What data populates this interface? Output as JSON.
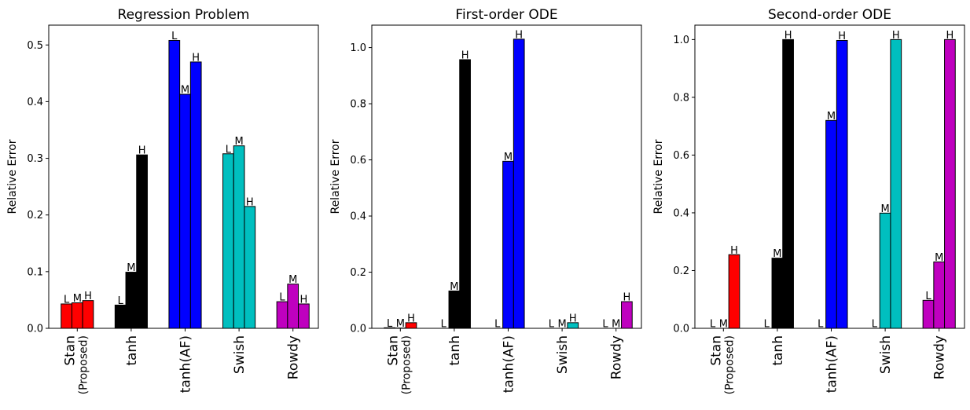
{
  "chart_data": [
    {
      "type": "bar",
      "title": "Regression Problem",
      "ylabel": "Relative Error",
      "ylim": [
        0,
        0.535
      ],
      "yticks": [
        0.0,
        0.1,
        0.2,
        0.3,
        0.4,
        0.5
      ],
      "categories": [
        {
          "label": "Stan",
          "sub": "(Proposed)",
          "color": "#ff0000"
        },
        {
          "label": "tanh",
          "sub": "",
          "color": "#000000"
        },
        {
          "label": "tanh(AF)",
          "sub": "",
          "color": "#0000ff"
        },
        {
          "label": "Swish",
          "sub": "",
          "color": "#00bfbf"
        },
        {
          "label": "Rowdy",
          "sub": "",
          "color": "#bf00bf"
        }
      ],
      "bar_labels": [
        "L",
        "M",
        "H"
      ],
      "values": [
        [
          0.043,
          0.045,
          0.049
        ],
        [
          0.041,
          0.099,
          0.306
        ],
        [
          0.508,
          0.413,
          0.47
        ],
        [
          0.308,
          0.322,
          0.215
        ],
        [
          0.047,
          0.078,
          0.043
        ]
      ]
    },
    {
      "type": "bar",
      "title": "First-order ODE",
      "ylabel": "Relative Error",
      "ylim": [
        0,
        1.08
      ],
      "yticks": [
        0.0,
        0.2,
        0.4,
        0.6,
        0.8,
        1.0
      ],
      "categories": [
        {
          "label": "Stan",
          "sub": "(Proposed)",
          "color": "#ff0000"
        },
        {
          "label": "tanh",
          "sub": "",
          "color": "#000000"
        },
        {
          "label": "tanh(AF)",
          "sub": "",
          "color": "#0000ff"
        },
        {
          "label": "Swish",
          "sub": "",
          "color": "#00bfbf"
        },
        {
          "label": "Rowdy",
          "sub": "",
          "color": "#bf00bf"
        }
      ],
      "bar_labels": [
        "L",
        "M",
        "H"
      ],
      "values": [
        [
          0.002,
          0.001,
          0.02
        ],
        [
          0.0,
          0.133,
          0.957
        ],
        [
          0.0,
          0.595,
          1.03
        ],
        [
          0.0,
          0.0,
          0.02
        ],
        [
          0.0,
          0.0,
          0.095
        ]
      ]
    },
    {
      "type": "bar",
      "title": "Second-order ODE",
      "ylabel": "Relative Error",
      "ylim": [
        0,
        1.05
      ],
      "yticks": [
        0.0,
        0.2,
        0.4,
        0.6,
        0.8,
        1.0
      ],
      "categories": [
        {
          "label": "Stan",
          "sub": "(Proposed)",
          "color": "#ff0000"
        },
        {
          "label": "tanh",
          "sub": "",
          "color": "#000000"
        },
        {
          "label": "tanh(AF)",
          "sub": "",
          "color": "#0000ff"
        },
        {
          "label": "Swish",
          "sub": "",
          "color": "#00bfbf"
        },
        {
          "label": "Rowdy",
          "sub": "",
          "color": "#bf00bf"
        }
      ],
      "bar_labels": [
        "L",
        "M",
        "H"
      ],
      "values": [
        [
          0.0,
          0.0,
          0.255
        ],
        [
          0.0,
          0.243,
          1.0
        ],
        [
          0.0,
          0.72,
          0.997
        ],
        [
          0.0,
          0.399,
          1.0
        ],
        [
          0.097,
          0.23,
          1.0
        ]
      ]
    }
  ]
}
